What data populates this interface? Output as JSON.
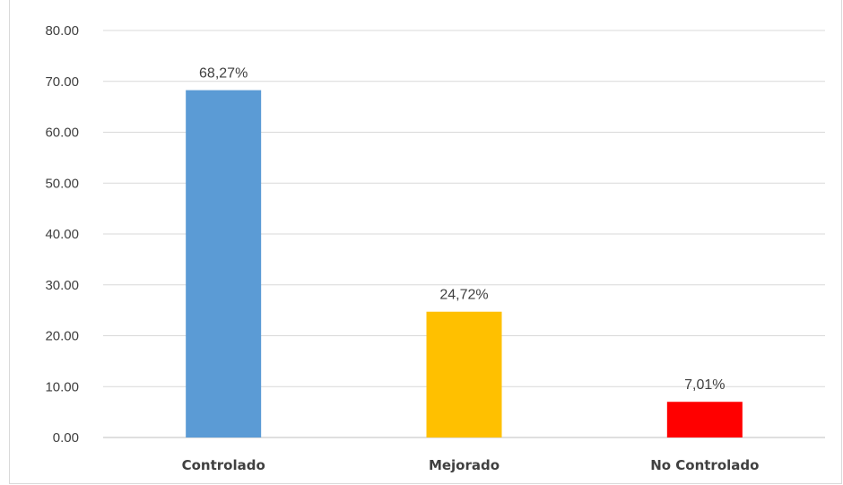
{
  "chart_data": {
    "type": "bar",
    "categories": [
      "Controlado",
      "Mejorado",
      "No Controlado"
    ],
    "values": [
      68.27,
      24.72,
      7.01
    ],
    "data_labels": [
      "68,27%",
      "24,72%",
      "7,01%"
    ],
    "colors": [
      "#5b9bd5",
      "#ffc000",
      "#ff0000"
    ],
    "title": "",
    "xlabel": "",
    "ylabel": "",
    "ylim": [
      0,
      80
    ],
    "yticks": [
      "0.00",
      "10.00",
      "20.00",
      "30.00",
      "40.00",
      "50.00",
      "60.00",
      "70.00",
      "80.00"
    ],
    "grid": true,
    "legend": "none"
  }
}
